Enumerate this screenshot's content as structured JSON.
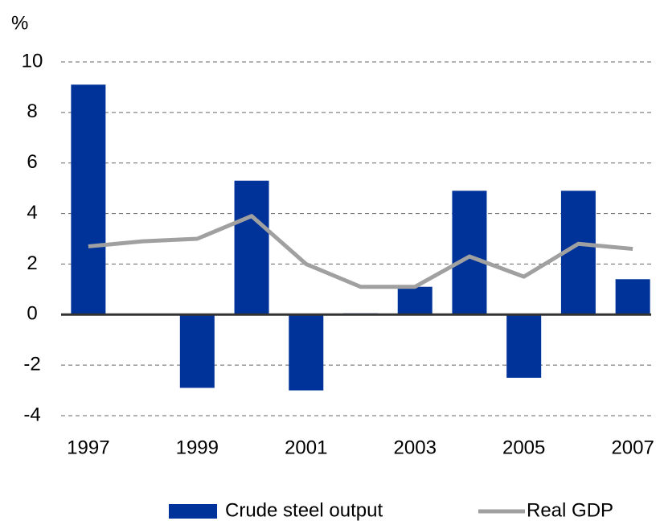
{
  "chart_data": {
    "type": "bar_line",
    "y_unit": "%",
    "categories": [
      "1997",
      null,
      "1999",
      null,
      "2001",
      null,
      "2003",
      null,
      "2005",
      null,
      "2007"
    ],
    "series": [
      {
        "name": "Crude steel output",
        "type": "bar",
        "color": "#003399",
        "values": [
          9.1,
          0,
          -2.9,
          5.3,
          -3.0,
          0.05,
          1.1,
          4.9,
          -2.5,
          4.9,
          1.4
        ]
      },
      {
        "name": "Real GDP",
        "type": "line",
        "color": "#a0a0a0",
        "values": [
          2.7,
          2.9,
          3.0,
          3.9,
          2.0,
          1.1,
          1.1,
          2.3,
          1.5,
          2.8,
          2.6
        ]
      }
    ],
    "ylim": [
      -4,
      10
    ],
    "yticks": [
      -4,
      -2,
      0,
      2,
      4,
      6,
      8,
      10
    ],
    "grid": true,
    "legend": "bottom"
  }
}
